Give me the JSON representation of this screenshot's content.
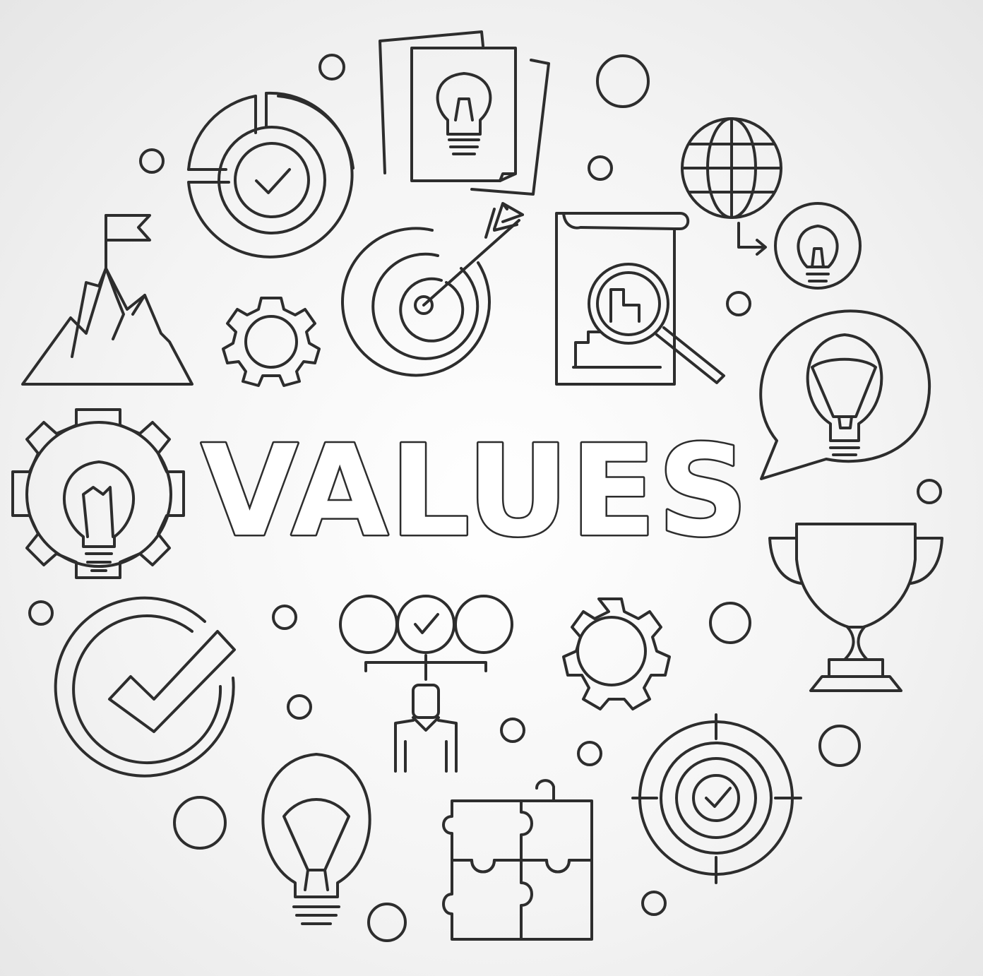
{
  "title": "VALUES",
  "colors": {
    "stroke": "#2d2d2d",
    "background": "#f4f4f4",
    "letter_fill": "#ffffff"
  },
  "icons": [
    "mountain-flag-icon",
    "pie-chart-check-icon",
    "idea-documents-icon",
    "globe-to-idea-icon",
    "small-gear-icon",
    "target-arrow-icon",
    "report-magnifier-icon",
    "speech-bubble-idea-icon",
    "gear-lightbulb-icon",
    "trophy-icon",
    "circle-check-icon",
    "team-choice-icon",
    "medium-gear-icon",
    "crosshair-target-check-icon",
    "lightbulb-icon",
    "puzzle-icon"
  ]
}
